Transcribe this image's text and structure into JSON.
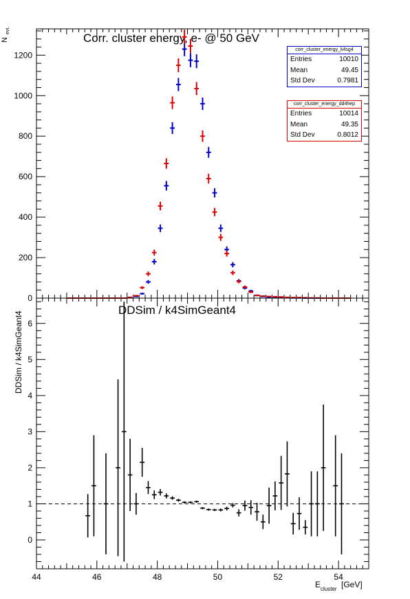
{
  "chart_data": [
    {
      "type": "scatter",
      "title": "Corr. cluster energy,  e- @ 50 GeV",
      "ylabel": "N",
      "ylabel_sub": "evt.",
      "xlim": [
        44,
        55
      ],
      "ylim": [
        0,
        1330
      ],
      "yticks": [
        "0",
        "200",
        "400",
        "600",
        "800",
        "1000",
        "1200"
      ],
      "ytick_values": [
        0,
        200,
        400,
        600,
        800,
        1000,
        1200
      ],
      "bin_width": 0.2,
      "series": [
        {
          "color": "#0000cc",
          "x": [
            45.1,
            45.3,
            45.5,
            45.7,
            45.9,
            46.1,
            46.3,
            46.5,
            46.7,
            46.9,
            47.1,
            47.3,
            47.5,
            47.7,
            47.9,
            48.1,
            48.3,
            48.5,
            48.7,
            48.9,
            49.1,
            49.3,
            49.5,
            49.7,
            49.9,
            50.1,
            50.3,
            50.5,
            50.7,
            50.9,
            51.1,
            51.3,
            51.5,
            51.7,
            51.9,
            52.1,
            52.3,
            52.5,
            52.7,
            52.9,
            53.1,
            53.3,
            53.5,
            53.7,
            53.9,
            54.1,
            54.3
          ],
          "y": [
            0,
            0,
            0,
            0,
            0,
            0,
            0,
            0,
            0,
            0,
            2,
            8,
            22,
            80,
            180,
            345,
            555,
            840,
            1055,
            1230,
            1175,
            1170,
            960,
            720,
            520,
            345,
            240,
            165,
            85,
            50,
            35,
            14,
            8,
            5,
            4,
            3,
            2,
            1,
            1,
            0,
            0,
            0,
            0,
            0,
            0,
            0,
            0
          ]
        },
        {
          "color": "#dd0000",
          "x": [
            45.1,
            45.3,
            45.5,
            45.7,
            45.9,
            46.1,
            46.3,
            46.5,
            46.7,
            46.9,
            47.1,
            47.3,
            47.5,
            47.7,
            47.9,
            48.1,
            48.3,
            48.5,
            48.7,
            48.9,
            49.1,
            49.3,
            49.5,
            49.7,
            49.9,
            50.1,
            50.3,
            50.5,
            50.7,
            50.9,
            51.1,
            51.3,
            51.5,
            51.7,
            51.9,
            52.1,
            52.3,
            52.5,
            52.7,
            52.9,
            53.1,
            53.3,
            53.5,
            53.7,
            53.9,
            54.1,
            54.3
          ],
          "y": [
            0,
            0,
            0,
            0,
            0,
            0,
            0,
            0,
            0,
            0,
            4,
            12,
            52,
            120,
            225,
            455,
            665,
            965,
            1150,
            1290,
            1245,
            1035,
            800,
            590,
            425,
            300,
            220,
            125,
            82,
            55,
            30,
            13,
            10,
            8,
            7,
            6,
            4,
            3,
            3,
            2,
            1,
            1,
            0,
            0,
            0,
            0,
            0
          ]
        }
      ]
    },
    {
      "type": "scatter",
      "title": "DDSim / k4SimGeant4",
      "xlabel": "E",
      "xlabel_sub": "cluster",
      "xlabel_unit": " [GeV]",
      "ylabel": "DDSim / k4SimGeant4",
      "xlim": [
        44,
        55
      ],
      "ylim": [
        -0.8,
        6.7
      ],
      "xticks": [
        "44",
        "46",
        "48",
        "50",
        "52",
        "54"
      ],
      "xtick_values": [
        44,
        46,
        48,
        50,
        52,
        54
      ],
      "yticks": [
        "0",
        "1",
        "2",
        "3",
        "4",
        "5",
        "6"
      ],
      "ytick_values": [
        0,
        1,
        2,
        3,
        4,
        5,
        6
      ],
      "reference_line": 1,
      "points": {
        "x": [
          45.7,
          45.9,
          46.3,
          46.7,
          46.9,
          47.1,
          47.3,
          47.5,
          47.7,
          47.9,
          48.1,
          48.3,
          48.5,
          48.7,
          48.9,
          49.1,
          49.3,
          49.5,
          49.7,
          49.9,
          50.1,
          50.3,
          50.5,
          50.7,
          50.9,
          51.1,
          51.3,
          51.5,
          51.7,
          51.9,
          52.1,
          52.3,
          52.5,
          52.7,
          52.9,
          53.1,
          53.3,
          53.5,
          53.7,
          53.9,
          54.1,
          54.3,
          54.5,
          54.7
        ],
        "y": [
          0.67,
          1.5,
          1.0,
          2.0,
          3.0,
          1.8,
          1.0,
          2.15,
          1.45,
          1.25,
          1.32,
          1.22,
          1.16,
          1.1,
          1.04,
          1.04,
          1.06,
          0.88,
          0.84,
          0.83,
          0.83,
          0.87,
          0.96,
          0.75,
          0.95,
          0.9,
          0.78,
          0.5,
          0.95,
          1.22,
          1.58,
          1.83,
          0.45,
          0.73,
          0.35,
          1.0,
          1.0,
          2.0,
          0.0,
          1.5,
          1.0,
          0,
          0,
          0
        ],
        "err": [
          0.6,
          1.4,
          1.4,
          2.45,
          3.6,
          1.0,
          0.3,
          0.4,
          0.18,
          0.12,
          0.09,
          0.07,
          0.05,
          0.04,
          0.03,
          0.03,
          0.03,
          0.03,
          0.03,
          0.03,
          0.04,
          0.05,
          0.06,
          0.1,
          0.14,
          0.2,
          0.25,
          0.2,
          0.5,
          0.4,
          0.75,
          0.9,
          0.3,
          0.45,
          0.2,
          0.9,
          0.9,
          1.75,
          0,
          1.4,
          1.4,
          0,
          0,
          0
        ]
      }
    }
  ],
  "stats_boxes": [
    {
      "name": "corr_cluster_energy_k4sg4",
      "color": "#0000cc",
      "rows": [
        {
          "label": "Entries",
          "value": "10010"
        },
        {
          "label": "Mean",
          "value": "49.45"
        },
        {
          "label": "Std Dev",
          "value": "0.7981"
        }
      ]
    },
    {
      "name": "corr_cluster_energy_dd4hep",
      "color": "#dd0000",
      "rows": [
        {
          "label": "Entries",
          "value": "10014"
        },
        {
          "label": "Mean",
          "value": "49.35"
        },
        {
          "label": "Std Dev",
          "value": "0.8012"
        }
      ]
    }
  ]
}
